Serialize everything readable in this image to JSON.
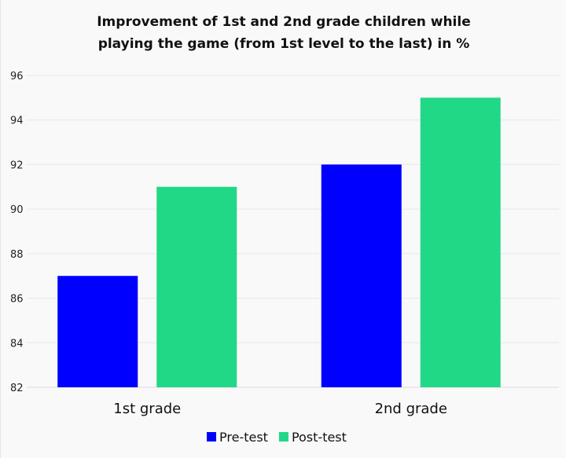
{
  "chart_data": {
    "type": "bar",
    "title_lines": [
      "Improvement of 1st and 2nd grade children while",
      "playing the game (from 1st level to the last) in %"
    ],
    "categories": [
      "1st grade",
      "2nd grade"
    ],
    "series": [
      {
        "name": "Pre-test",
        "values": [
          87,
          92
        ],
        "color": "#0000ff"
      },
      {
        "name": "Post-test",
        "values": [
          91,
          95
        ],
        "color": "#21d886"
      }
    ],
    "xlabel": "",
    "ylabel": "",
    "ylim": [
      82,
      96
    ],
    "yticks": [
      82,
      84,
      86,
      88,
      90,
      92,
      94,
      96
    ],
    "grid": true,
    "legend_position": "bottom"
  }
}
